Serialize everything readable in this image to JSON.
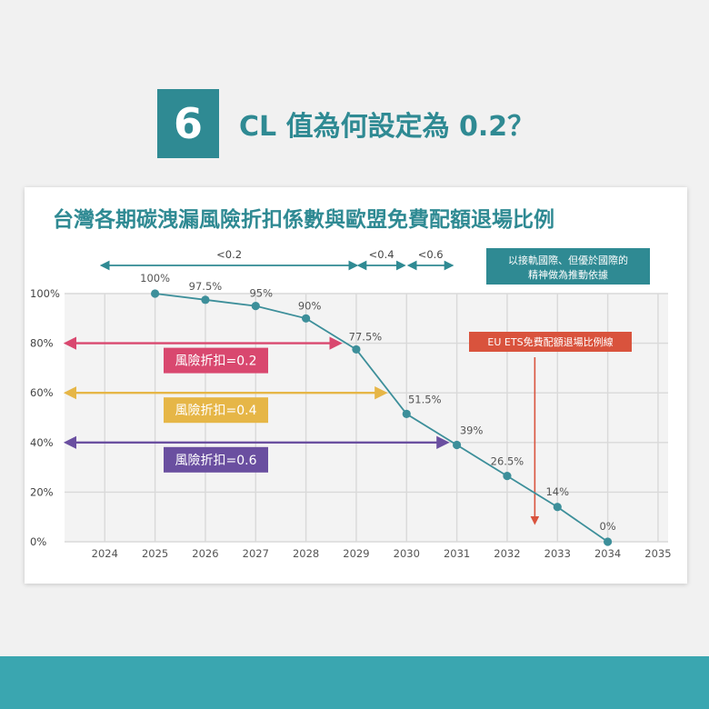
{
  "heading": {
    "number": "6",
    "text": "CL 值為何設定為 0.2？"
  },
  "chart_data": {
    "type": "line",
    "title": "台灣各期碳洩漏風險折扣係數與歐盟免費配額退場比例",
    "x_ticks": [
      "2024",
      "2025",
      "2026",
      "2027",
      "2028",
      "2029",
      "2030",
      "2031",
      "2032",
      "2033",
      "2034",
      "2035"
    ],
    "xlim": [
      2024,
      2035
    ],
    "y_ticks": [
      "0%",
      "20%",
      "40%",
      "60%",
      "80%",
      "100%"
    ],
    "ylim": [
      0,
      100
    ],
    "grid": true,
    "series": [
      {
        "name": "EU ETS免費配額退場比例線",
        "color": "#3d8f9a",
        "x": [
          2025,
          2026,
          2027,
          2028,
          2029,
          2030,
          2031,
          2032,
          2033,
          2034
        ],
        "y": [
          100,
          97.5,
          95,
          90,
          77.5,
          51.5,
          39,
          26.5,
          14,
          0
        ],
        "labels": [
          "100%",
          "97.5%",
          "95%",
          "90%",
          "77.5%",
          "51.5%",
          "39%",
          "26.5%",
          "14%",
          "0%"
        ]
      }
    ],
    "discount_lines": [
      {
        "label": "風險折扣=0.2",
        "y": 80,
        "x_end": 2028.65,
        "color": "#d9486f"
      },
      {
        "label": "風險折扣=0.4",
        "y": 60,
        "x_end": 2029.55,
        "color": "#e6b647"
      },
      {
        "label": "風險折扣=0.6",
        "y": 40,
        "x_end": 2030.78,
        "color": "#6a4fa0"
      }
    ],
    "period_ranges": [
      {
        "label": "<0.2",
        "from": 2024,
        "to": 2029
      },
      {
        "label": "<0.4",
        "from": 2029,
        "to": 2030
      },
      {
        "label": "<0.6",
        "from": 2030,
        "to": 2030.9
      }
    ],
    "annotations": {
      "note": [
        "以接軌國際、但優於國際的",
        "精神做為推動依據"
      ],
      "eu_line_label": "EU ETS免費配額退場比例線",
      "eu_arrow_x": 2032.55
    }
  }
}
